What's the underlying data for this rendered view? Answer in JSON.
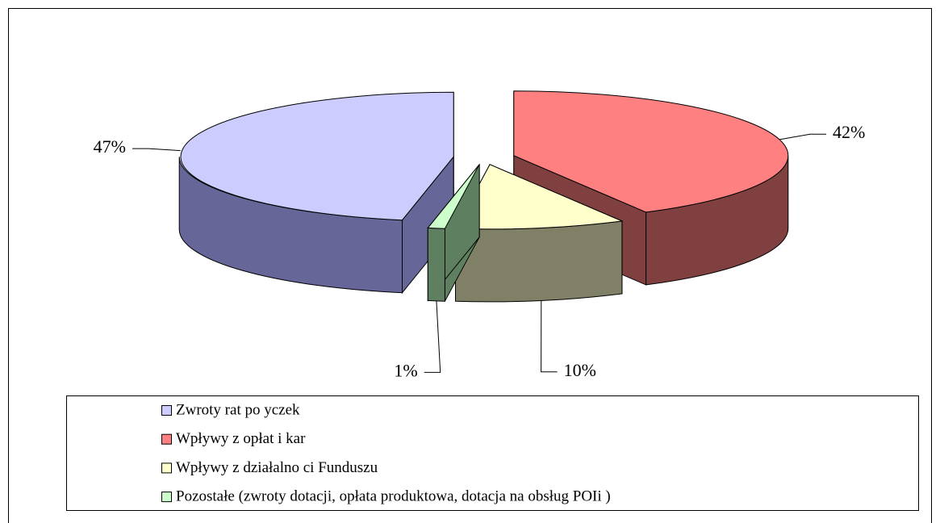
{
  "chart_data": {
    "type": "pie3d",
    "series": [
      {
        "name": "Zwroty rat po  yczek",
        "color": "#ccccff",
        "values": [
          47
        ],
        "value_labels": [
          "47%"
        ]
      },
      {
        "name": "Wpływy z opłat i kar",
        "color": "#ff8080",
        "values": [
          42
        ],
        "value_labels": [
          "42%"
        ]
      },
      {
        "name": "Wpływy z działalno  ci Funduszu",
        "color": "#ffffcc",
        "values": [
          10
        ],
        "value_labels": [
          "10%"
        ]
      },
      {
        "name": "Pozostałe (zwroty dotacji, opłata produktowa, dotacja na obsług  POIi  )",
        "color": "#ccffcc",
        "values": [
          1
        ],
        "value_labels": [
          "1%"
        ]
      }
    ],
    "side_colors": [
      "#666699",
      "#804040",
      "#808066",
      "#5f8060"
    ],
    "legend": "bottom"
  }
}
